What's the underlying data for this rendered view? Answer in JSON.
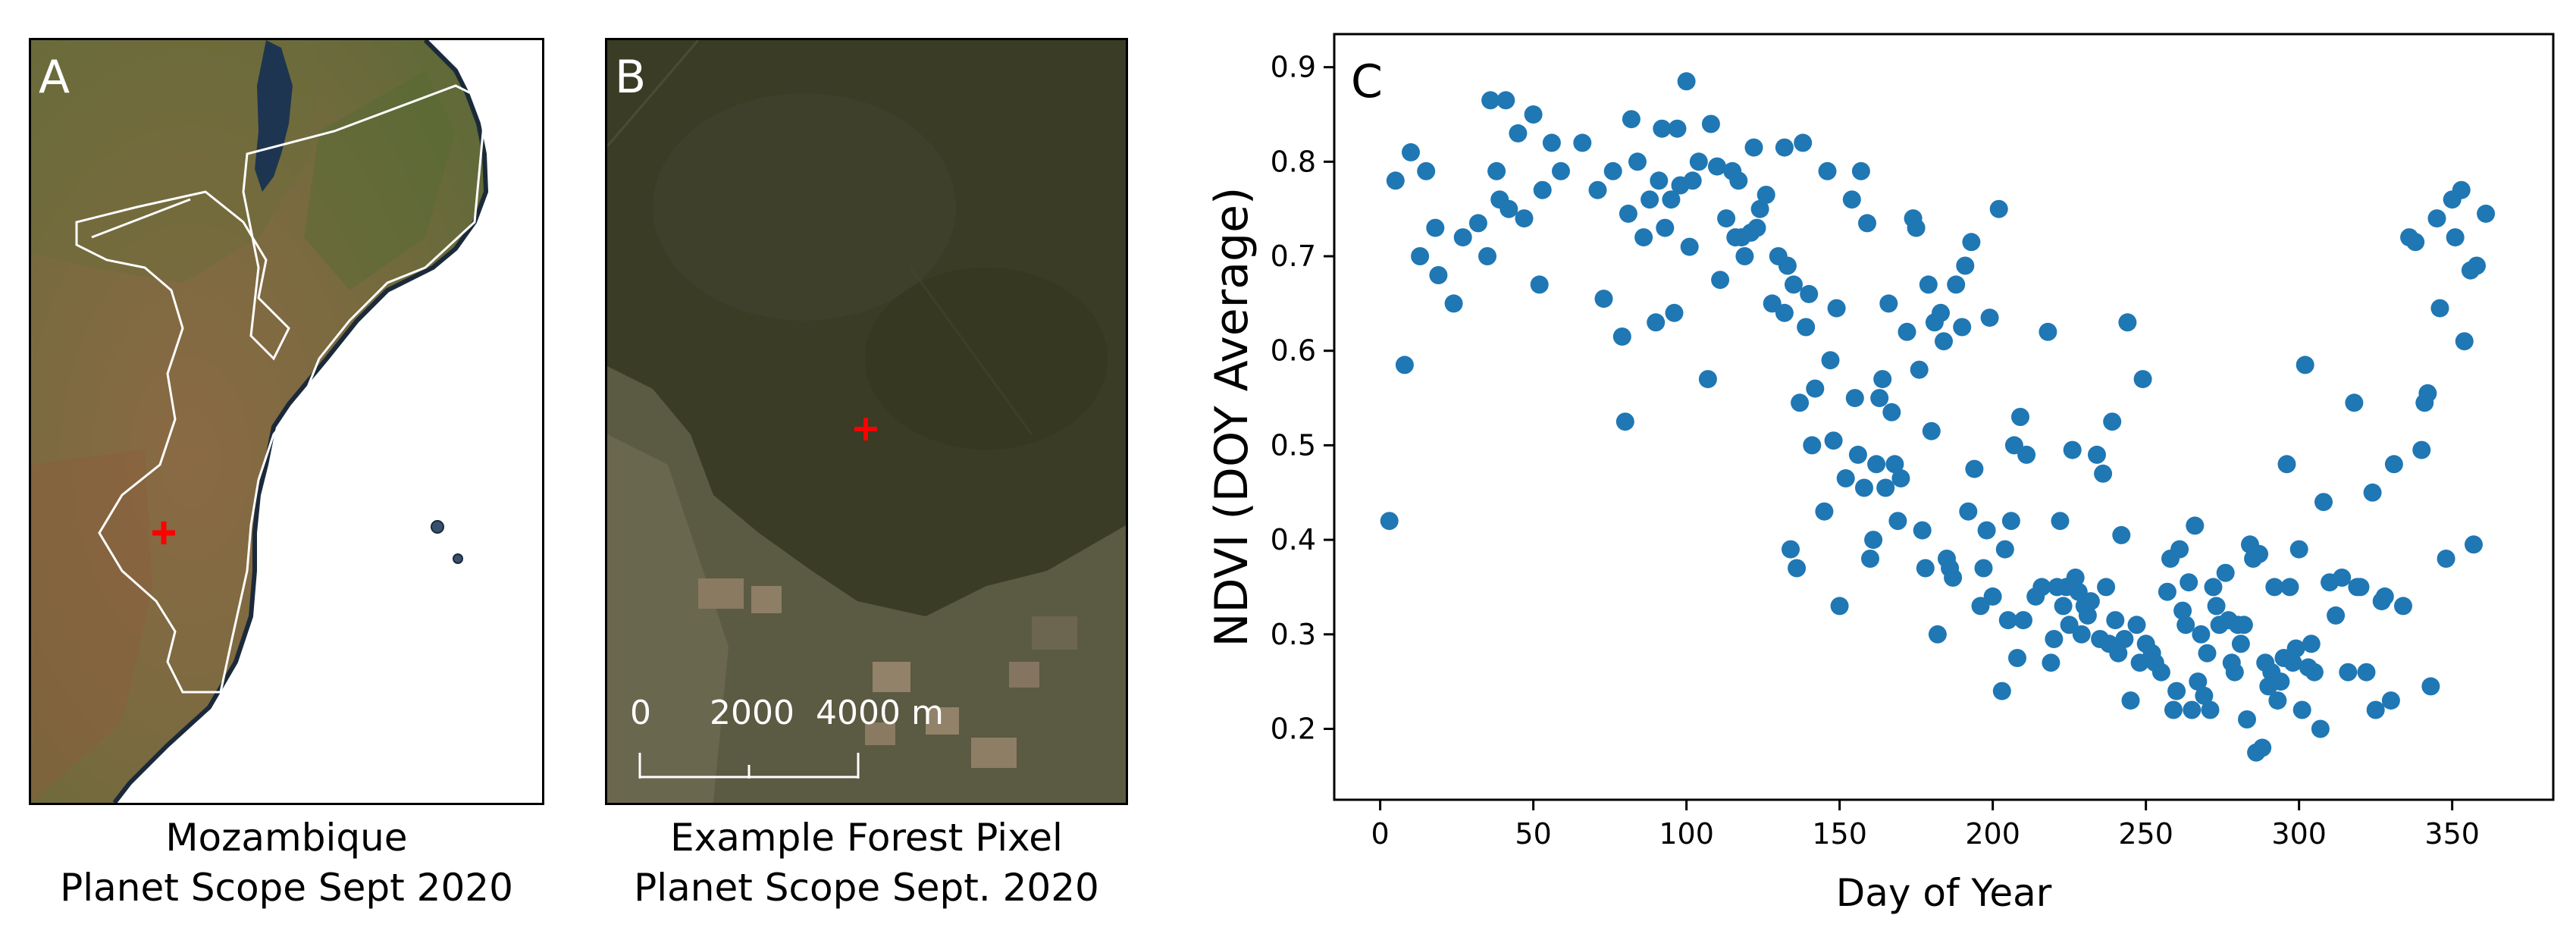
{
  "panel_a": {
    "letter": "A",
    "caption_line1": "Mozambique",
    "caption_line2": "Planet Scope Sept 2020",
    "marker_color": "#ff0000"
  },
  "panel_b": {
    "letter": "B",
    "caption_line1": "Example Forest Pixel",
    "caption_line2": "Planet Scope Sept. 2020",
    "scale_labels": [
      "0",
      "2000",
      "4000 m"
    ],
    "marker_color": "#ff0000"
  },
  "chart_data": {
    "type": "scatter",
    "letter": "C",
    "xlabel": "Day of Year",
    "ylabel": "NDVI (DOY Average)",
    "xlim": [
      -15,
      383
    ],
    "ylim": [
      0.125,
      0.935
    ],
    "xticks": [
      0,
      50,
      100,
      150,
      200,
      250,
      300,
      350
    ],
    "yticks": [
      0.2,
      0.3,
      0.4,
      0.5,
      0.6,
      0.7,
      0.8,
      0.9
    ],
    "color": "#1f77b4",
    "grid": false,
    "points": [
      [
        3,
        0.42
      ],
      [
        5,
        0.78
      ],
      [
        8,
        0.585
      ],
      [
        10,
        0.81
      ],
      [
        13,
        0.7
      ],
      [
        15,
        0.79
      ],
      [
        18,
        0.73
      ],
      [
        19,
        0.68
      ],
      [
        24,
        0.65
      ],
      [
        27,
        0.72
      ],
      [
        32,
        0.735
      ],
      [
        35,
        0.7
      ],
      [
        36,
        0.865
      ],
      [
        38,
        0.79
      ],
      [
        39,
        0.76
      ],
      [
        41,
        0.865
      ],
      [
        42,
        0.75
      ],
      [
        45,
        0.83
      ],
      [
        47,
        0.74
      ],
      [
        50,
        0.85
      ],
      [
        52,
        0.67
      ],
      [
        53,
        0.77
      ],
      [
        56,
        0.82
      ],
      [
        59,
        0.79
      ],
      [
        66,
        0.82
      ],
      [
        71,
        0.77
      ],
      [
        73,
        0.655
      ],
      [
        76,
        0.79
      ],
      [
        79,
        0.615
      ],
      [
        80,
        0.525
      ],
      [
        81,
        0.745
      ],
      [
        82,
        0.845
      ],
      [
        84,
        0.8
      ],
      [
        86,
        0.72
      ],
      [
        88,
        0.76
      ],
      [
        90,
        0.63
      ],
      [
        91,
        0.78
      ],
      [
        92,
        0.835
      ],
      [
        93,
        0.73
      ],
      [
        95,
        0.76
      ],
      [
        96,
        0.64
      ],
      [
        97,
        0.835
      ],
      [
        98,
        0.775
      ],
      [
        100,
        0.885
      ],
      [
        101,
        0.71
      ],
      [
        102,
        0.78
      ],
      [
        104,
        0.8
      ],
      [
        107,
        0.57
      ],
      [
        108,
        0.84
      ],
      [
        110,
        0.795
      ],
      [
        111,
        0.675
      ],
      [
        113,
        0.74
      ],
      [
        115,
        0.79
      ],
      [
        116,
        0.72
      ],
      [
        117,
        0.78
      ],
      [
        118,
        0.72
      ],
      [
        119,
        0.7
      ],
      [
        121,
        0.725
      ],
      [
        122,
        0.815
      ],
      [
        123,
        0.73
      ],
      [
        124,
        0.75
      ],
      [
        126,
        0.765
      ],
      [
        128,
        0.65
      ],
      [
        130,
        0.7
      ],
      [
        132,
        0.64
      ],
      [
        132,
        0.815
      ],
      [
        133,
        0.69
      ],
      [
        134,
        0.39
      ],
      [
        135,
        0.67
      ],
      [
        136,
        0.37
      ],
      [
        137,
        0.545
      ],
      [
        138,
        0.82
      ],
      [
        139,
        0.625
      ],
      [
        140,
        0.66
      ],
      [
        141,
        0.5
      ],
      [
        142,
        0.56
      ],
      [
        145,
        0.43
      ],
      [
        146,
        0.79
      ],
      [
        147,
        0.59
      ],
      [
        148,
        0.505
      ],
      [
        149,
        0.645
      ],
      [
        150,
        0.33
      ],
      [
        152,
        0.465
      ],
      [
        154,
        0.76
      ],
      [
        155,
        0.55
      ],
      [
        156,
        0.49
      ],
      [
        157,
        0.79
      ],
      [
        158,
        0.455
      ],
      [
        159,
        0.735
      ],
      [
        160,
        0.38
      ],
      [
        161,
        0.4
      ],
      [
        162,
        0.48
      ],
      [
        163,
        0.55
      ],
      [
        164,
        0.57
      ],
      [
        165,
        0.455
      ],
      [
        166,
        0.65
      ],
      [
        167,
        0.535
      ],
      [
        168,
        0.48
      ],
      [
        169,
        0.42
      ],
      [
        170,
        0.465
      ],
      [
        172,
        0.62
      ],
      [
        174,
        0.74
      ],
      [
        175,
        0.73
      ],
      [
        176,
        0.58
      ],
      [
        177,
        0.41
      ],
      [
        178,
        0.37
      ],
      [
        179,
        0.67
      ],
      [
        180,
        0.515
      ],
      [
        181,
        0.63
      ],
      [
        182,
        0.3
      ],
      [
        183,
        0.64
      ],
      [
        184,
        0.61
      ],
      [
        185,
        0.38
      ],
      [
        186,
        0.37
      ],
      [
        187,
        0.36
      ],
      [
        188,
        0.67
      ],
      [
        190,
        0.625
      ],
      [
        191,
        0.69
      ],
      [
        192,
        0.43
      ],
      [
        193,
        0.715
      ],
      [
        194,
        0.475
      ],
      [
        196,
        0.33
      ],
      [
        197,
        0.37
      ],
      [
        198,
        0.41
      ],
      [
        199,
        0.635
      ],
      [
        200,
        0.34
      ],
      [
        202,
        0.75
      ],
      [
        203,
        0.24
      ],
      [
        204,
        0.39
      ],
      [
        205,
        0.315
      ],
      [
        206,
        0.42
      ],
      [
        207,
        0.5
      ],
      [
        208,
        0.275
      ],
      [
        209,
        0.53
      ],
      [
        210,
        0.315
      ],
      [
        211,
        0.49
      ],
      [
        214,
        0.34
      ],
      [
        216,
        0.35
      ],
      [
        218,
        0.62
      ],
      [
        219,
        0.27
      ],
      [
        220,
        0.295
      ],
      [
        221,
        0.35
      ],
      [
        222,
        0.42
      ],
      [
        223,
        0.33
      ],
      [
        224,
        0.35
      ],
      [
        225,
        0.31
      ],
      [
        226,
        0.495
      ],
      [
        227,
        0.36
      ],
      [
        228,
        0.345
      ],
      [
        229,
        0.3
      ],
      [
        230,
        0.33
      ],
      [
        231,
        0.32
      ],
      [
        232,
        0.335
      ],
      [
        234,
        0.49
      ],
      [
        235,
        0.295
      ],
      [
        236,
        0.47
      ],
      [
        237,
        0.35
      ],
      [
        238,
        0.29
      ],
      [
        239,
        0.525
      ],
      [
        240,
        0.315
      ],
      [
        241,
        0.28
      ],
      [
        242,
        0.405
      ],
      [
        243,
        0.295
      ],
      [
        244,
        0.63
      ],
      [
        245,
        0.23
      ],
      [
        247,
        0.31
      ],
      [
        248,
        0.27
      ],
      [
        249,
        0.57
      ],
      [
        250,
        0.29
      ],
      [
        252,
        0.28
      ],
      [
        253,
        0.27
      ],
      [
        255,
        0.26
      ],
      [
        257,
        0.345
      ],
      [
        258,
        0.38
      ],
      [
        259,
        0.22
      ],
      [
        260,
        0.24
      ],
      [
        261,
        0.39
      ],
      [
        262,
        0.325
      ],
      [
        263,
        0.31
      ],
      [
        264,
        0.355
      ],
      [
        265,
        0.22
      ],
      [
        266,
        0.415
      ],
      [
        267,
        0.25
      ],
      [
        268,
        0.3
      ],
      [
        269,
        0.235
      ],
      [
        270,
        0.28
      ],
      [
        271,
        0.22
      ],
      [
        272,
        0.35
      ],
      [
        273,
        0.33
      ],
      [
        274,
        0.31
      ],
      [
        276,
        0.365
      ],
      [
        277,
        0.315
      ],
      [
        278,
        0.27
      ],
      [
        279,
        0.26
      ],
      [
        280,
        0.31
      ],
      [
        281,
        0.29
      ],
      [
        282,
        0.31
      ],
      [
        283,
        0.21
      ],
      [
        284,
        0.395
      ],
      [
        285,
        0.38
      ],
      [
        286,
        0.175
      ],
      [
        287,
        0.385
      ],
      [
        288,
        0.18
      ],
      [
        289,
        0.27
      ],
      [
        290,
        0.245
      ],
      [
        291,
        0.26
      ],
      [
        292,
        0.35
      ],
      [
        293,
        0.23
      ],
      [
        294,
        0.25
      ],
      [
        295,
        0.275
      ],
      [
        296,
        0.48
      ],
      [
        297,
        0.35
      ],
      [
        298,
        0.27
      ],
      [
        299,
        0.285
      ],
      [
        300,
        0.39
      ],
      [
        301,
        0.22
      ],
      [
        302,
        0.585
      ],
      [
        303,
        0.265
      ],
      [
        304,
        0.29
      ],
      [
        305,
        0.26
      ],
      [
        307,
        0.2
      ],
      [
        308,
        0.44
      ],
      [
        310,
        0.355
      ],
      [
        312,
        0.32
      ],
      [
        314,
        0.36
      ],
      [
        316,
        0.26
      ],
      [
        318,
        0.545
      ],
      [
        319,
        0.35
      ],
      [
        320,
        0.35
      ],
      [
        322,
        0.26
      ],
      [
        324,
        0.45
      ],
      [
        325,
        0.22
      ],
      [
        327,
        0.335
      ],
      [
        328,
        0.34
      ],
      [
        330,
        0.23
      ],
      [
        331,
        0.48
      ],
      [
        334,
        0.33
      ],
      [
        336,
        0.72
      ],
      [
        338,
        0.715
      ],
      [
        340,
        0.495
      ],
      [
        341,
        0.545
      ],
      [
        342,
        0.555
      ],
      [
        343,
        0.245
      ],
      [
        345,
        0.74
      ],
      [
        346,
        0.645
      ],
      [
        348,
        0.38
      ],
      [
        350,
        0.76
      ],
      [
        351,
        0.72
      ],
      [
        353,
        0.77
      ],
      [
        354,
        0.61
      ],
      [
        356,
        0.685
      ],
      [
        357,
        0.395
      ],
      [
        358,
        0.69
      ],
      [
        361,
        0.745
      ]
    ]
  }
}
